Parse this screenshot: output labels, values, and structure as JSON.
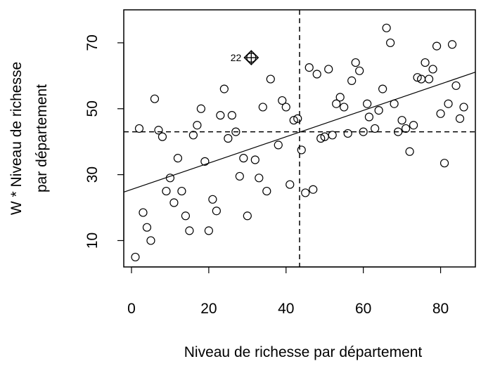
{
  "chart_data": {
    "type": "scatter",
    "title": "",
    "xlabel": "Niveau de richesse par département",
    "ylabel_line1": "W * Niveau de richesse",
    "ylabel_line2": "par département",
    "xlim": [
      -2,
      89
    ],
    "ylim": [
      2,
      80
    ],
    "xticks": [
      0,
      20,
      40,
      60,
      80
    ],
    "yticks": [
      10,
      30,
      50,
      70
    ],
    "x_tick_labels": [
      "0",
      "20",
      "40",
      "60",
      "80"
    ],
    "y_tick_labels": [
      "10",
      "30",
      "50",
      "70"
    ],
    "grid": false,
    "legend": "none",
    "mean_x": 43.5,
    "mean_y": 43,
    "regression_line": {
      "intercept": 25.5,
      "slope": 0.4
    },
    "highlight": {
      "label": "22",
      "x": 31,
      "y": 65.5
    },
    "points": [
      [
        1,
        5
      ],
      [
        2,
        44
      ],
      [
        3,
        18.5
      ],
      [
        4,
        14
      ],
      [
        5,
        10
      ],
      [
        6,
        53
      ],
      [
        7,
        43.5
      ],
      [
        8,
        41.5
      ],
      [
        9,
        25
      ],
      [
        10,
        29
      ],
      [
        11,
        21.5
      ],
      [
        12,
        35
      ],
      [
        13,
        25
      ],
      [
        14,
        17.5
      ],
      [
        15,
        13
      ],
      [
        16,
        42
      ],
      [
        17,
        45
      ],
      [
        18,
        50
      ],
      [
        19,
        34
      ],
      [
        20,
        13
      ],
      [
        21,
        22.5
      ],
      [
        22,
        19
      ],
      [
        23,
        48
      ],
      [
        24,
        56
      ],
      [
        25,
        41
      ],
      [
        26,
        48
      ],
      [
        27,
        43
      ],
      [
        28,
        29.5
      ],
      [
        29,
        35
      ],
      [
        30,
        17.5
      ],
      [
        32,
        34.5
      ],
      [
        33,
        29
      ],
      [
        34,
        50.5
      ],
      [
        35,
        25
      ],
      [
        36,
        59
      ],
      [
        38,
        39
      ],
      [
        39,
        52.5
      ],
      [
        40,
        50.5
      ],
      [
        41,
        27
      ],
      [
        42,
        46.5
      ],
      [
        43,
        47
      ],
      [
        44,
        37.5
      ],
      [
        45,
        24.5
      ],
      [
        46,
        62.5
      ],
      [
        47,
        25.5
      ],
      [
        48,
        60.5
      ],
      [
        49,
        41
      ],
      [
        50,
        41.5
      ],
      [
        51,
        62
      ],
      [
        52,
        42
      ],
      [
        53,
        51.5
      ],
      [
        54,
        53.5
      ],
      [
        55,
        50.5
      ],
      [
        56,
        42.5
      ],
      [
        57,
        58.5
      ],
      [
        58,
        64
      ],
      [
        59,
        61.5
      ],
      [
        60,
        43
      ],
      [
        61,
        51.5
      ],
      [
        61.5,
        47.5
      ],
      [
        63,
        44
      ],
      [
        64,
        49.5
      ],
      [
        65,
        56
      ],
      [
        66,
        74.5
      ],
      [
        67,
        70
      ],
      [
        68,
        51.5
      ],
      [
        69,
        43
      ],
      [
        70,
        46.5
      ],
      [
        71,
        44
      ],
      [
        72,
        37
      ],
      [
        73,
        45
      ],
      [
        74,
        59.5
      ],
      [
        75,
        59
      ],
      [
        76,
        64
      ],
      [
        77,
        59
      ],
      [
        78,
        62
      ],
      [
        79,
        69
      ],
      [
        80,
        48.5
      ],
      [
        81,
        33.5
      ],
      [
        82,
        51.5
      ],
      [
        83,
        69.5
      ],
      [
        84,
        57
      ],
      [
        85,
        47
      ],
      [
        86,
        50.5
      ]
    ]
  }
}
